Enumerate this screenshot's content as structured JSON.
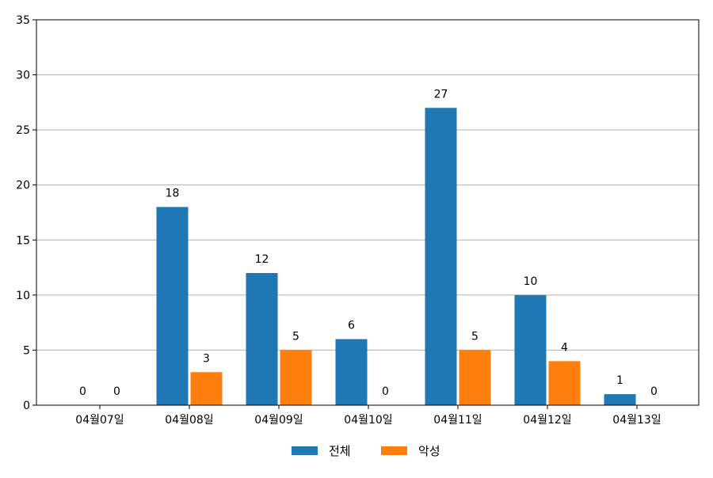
{
  "chart_data": {
    "type": "bar",
    "categories": [
      "04월07일",
      "04월08일",
      "04월09일",
      "04월10일",
      "04월11일",
      "04월12일",
      "04월13일"
    ],
    "series": [
      {
        "name": "전체",
        "color": "#1f77b4",
        "values": [
          0,
          18,
          12,
          6,
          27,
          10,
          1
        ]
      },
      {
        "name": "악성",
        "color": "#ff7f0e",
        "values": [
          0,
          3,
          5,
          0,
          5,
          4,
          0
        ]
      }
    ],
    "title": "",
    "xlabel": "",
    "ylabel": "",
    "ylim": [
      0,
      35
    ],
    "yticks": [
      0,
      5,
      10,
      15,
      20,
      25,
      30,
      35
    ],
    "grid": "y",
    "grid_color": "#b0b0b0",
    "legend_position": "bottom-center"
  }
}
